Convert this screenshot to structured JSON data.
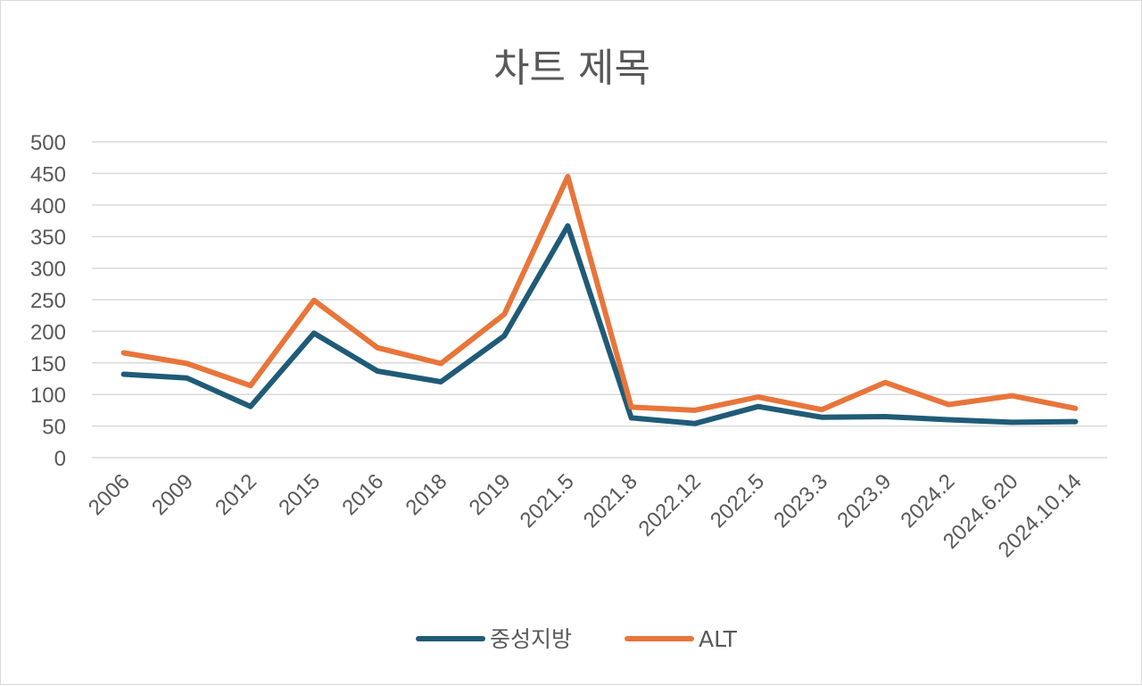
{
  "chart_data": {
    "type": "line",
    "title": "차트 제목",
    "xlabel": "",
    "ylabel": "",
    "categories": [
      "2006",
      "2009",
      "2012",
      "2015",
      "2016",
      "2018",
      "2019",
      "2021.5",
      "2021.8",
      "2022.12",
      "2022.5",
      "2023.3",
      "2023.9",
      "2024.2",
      "2024.6.20",
      "2024.10.14"
    ],
    "ylim": [
      0,
      500
    ],
    "yticks": [
      0,
      50,
      100,
      150,
      200,
      250,
      300,
      350,
      400,
      450,
      500
    ],
    "grid": true,
    "legend_position": "bottom",
    "series": [
      {
        "name": "중성지방",
        "color": "#1f5b77",
        "values": [
          132,
          126,
          81,
          197,
          137,
          120,
          193,
          367,
          63,
          54,
          81,
          64,
          65,
          60,
          56,
          57
        ]
      },
      {
        "name": "ALT",
        "color": "#e8753a",
        "values": [
          166,
          149,
          114,
          249,
          174,
          149,
          227,
          445,
          80,
          75,
          96,
          76,
          119,
          84,
          98,
          78
        ]
      }
    ]
  }
}
